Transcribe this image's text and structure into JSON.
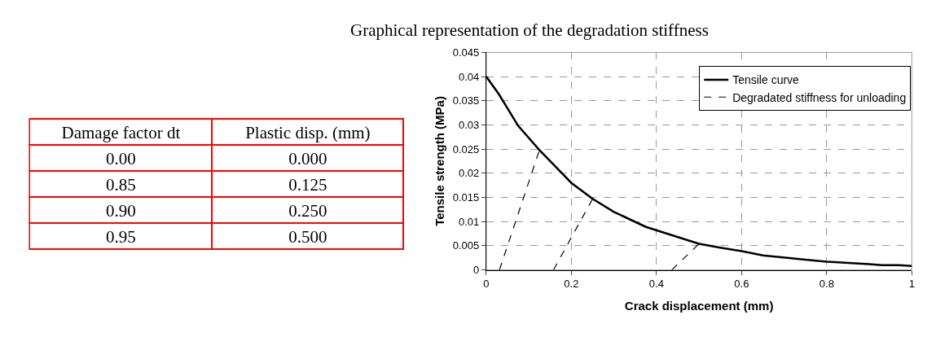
{
  "chart_data": [
    {
      "type": "other",
      "annotations": [
        "Damage factor dt",
        "Plastic disp. (mm)",
        "0.00",
        "0.000",
        "0.85",
        "0.125",
        "0.90",
        "0.250",
        "0.95",
        "0.500"
      ]
    },
    {
      "type": "line",
      "title": "Graphical representation of the degradation stiffness",
      "xlabel": "Crack displacement (mm)",
      "ylabel": "Tensile strength (MPa)",
      "xlim": [
        0,
        1
      ],
      "xticks": [
        0,
        0.2,
        0.4,
        0.6,
        0.8,
        1
      ],
      "ylim": [
        0,
        0.045
      ],
      "yticks": [
        0,
        0.005,
        0.01,
        0.015,
        0.02,
        0.025,
        0.03,
        0.035,
        0.04,
        0.045
      ],
      "grid": true,
      "legend": "top right",
      "marker": "none",
      "series": [
        {
          "name": "Tensile curve",
          "color": "#000000",
          "line_style": "solid",
          "x": [
            0,
            0.03,
            0.075,
            0.125,
            0.2,
            0.25,
            0.3,
            0.375,
            0.5,
            0.55,
            0.6,
            0.65,
            0.75,
            0.8,
            0.9,
            0.93,
            0.97,
            1
          ],
          "values": [
            0.04,
            0.0363,
            0.0298,
            0.0248,
            0.018,
            0.0147,
            0.012,
            0.0089,
            0.0054,
            0.0046,
            0.0039,
            0.003,
            0.0021,
            0.0017,
            0.0012,
            0.001,
            0.001,
            0.0008
          ]
        },
        {
          "name": "Degradated stiffness for unloading",
          "color": "#000000",
          "line_style": "dashed",
          "x": [
            0.031,
            0.125
          ],
          "values": [
            0,
            0.0248
          ]
        },
        {
          "color": "#000000",
          "line_style": "dashed",
          "x": [
            0.158,
            0.25
          ],
          "values": [
            0,
            0.0147
          ]
        },
        {
          "color": "#000000",
          "line_style": "dashed",
          "x": [
            0.436,
            0.5
          ],
          "values": [
            0,
            0.0054
          ]
        }
      ]
    }
  ]
}
